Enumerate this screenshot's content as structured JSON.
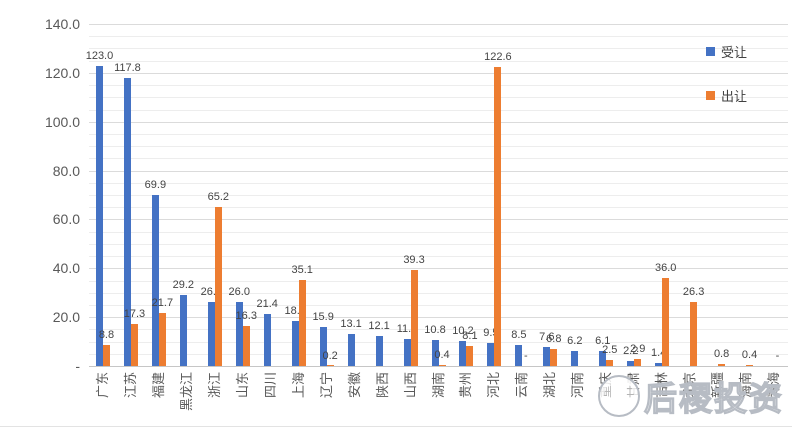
{
  "chart_data": {
    "type": "bar",
    "title": "",
    "categories": [
      "广东",
      "江苏",
      "福建",
      "黑龙江",
      "浙江",
      "山东",
      "四川",
      "上海",
      "辽宁",
      "安徽",
      "陕西",
      "山西",
      "湖南",
      "贵州",
      "河北",
      "云南",
      "湖北",
      "河南",
      "重庆",
      "甘肃",
      "吉林",
      "北京",
      "新疆",
      "海南",
      "青海"
    ],
    "series": [
      {
        "name": "受让",
        "color": "#4472C4",
        "values": [
          123.0,
          117.8,
          69.9,
          29.2,
          26.1,
          26.0,
          21.4,
          18.6,
          15.9,
          13.1,
          12.1,
          11.2,
          10.8,
          10.2,
          9.5,
          8.5,
          7.6,
          6.2,
          6.1,
          2.2,
          1.4,
          null,
          null,
          null,
          null
        ],
        "labels": [
          "123.0",
          "117.8",
          "69.9",
          "29.2",
          "26.1",
          "26.0",
          "21.4",
          "18.6",
          "15.9",
          "13.1",
          "12.1",
          "11.2",
          "10.8",
          "10.2",
          "9.5",
          "8.5",
          "7.6",
          "6.2",
          "6.1",
          "2.2",
          "1.4",
          null,
          null,
          null,
          null
        ]
      },
      {
        "name": "出让",
        "color": "#ED7D31",
        "values": [
          8.8,
          17.3,
          21.7,
          null,
          65.2,
          16.3,
          null,
          35.1,
          0.2,
          null,
          null,
          39.3,
          0.4,
          8.1,
          122.6,
          0,
          6.8,
          null,
          2.5,
          2.9,
          36.0,
          26.3,
          0.8,
          0.4,
          0
        ],
        "labels": [
          "8.8",
          "17.3",
          "21.7",
          null,
          "65.2",
          "16.3",
          null,
          "35.1",
          "0.2",
          null,
          null,
          "39.3",
          "0.4",
          "8.1",
          "122.6",
          "-",
          "6.8",
          null,
          "2.5",
          "2.9",
          "36.0",
          "26.3",
          "0.8",
          "0.4",
          "-"
        ]
      }
    ],
    "ylim": [
      0,
      140
    ],
    "ytick_step": 20,
    "yticks": [
      "-",
      "20.0",
      "40.0",
      "60.0",
      "80.0",
      "100.0",
      "120.0",
      "140.0"
    ],
    "grid": true,
    "minor_grid_step": 5,
    "legend_position": "top-right"
  },
  "watermark": {
    "text": "后稷投资"
  }
}
